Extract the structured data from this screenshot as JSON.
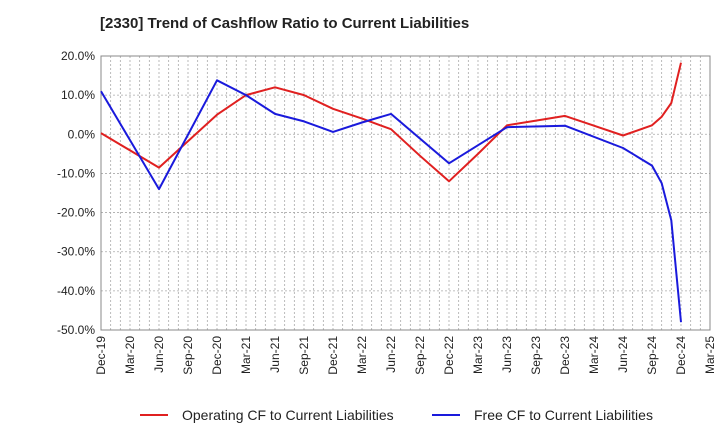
{
  "chart_data": {
    "type": "line",
    "title": "[2330]  Trend of Cashflow Ratio to Current Liabilities",
    "xlabel": "",
    "ylabel": "",
    "x_tick_labels": [
      "Dec-19",
      "Mar-20",
      "Jun-20",
      "Sep-20",
      "Dec-20",
      "Mar-21",
      "Jun-21",
      "Sep-21",
      "Dec-21",
      "Mar-22",
      "Jun-22",
      "Sep-22",
      "Dec-22",
      "Mar-23",
      "Jun-23",
      "Sep-23",
      "Dec-23",
      "Mar-24",
      "Jun-24",
      "Sep-24",
      "Dec-24",
      "Mar-25"
    ],
    "y_tick_labels": [
      "20.0%",
      "10.0%",
      "0.0%",
      "-10.0%",
      "-20.0%",
      "-30.0%",
      "-40.0%",
      "-50.0%"
    ],
    "ylim": [
      -50,
      20
    ],
    "y_unit": "%",
    "grid": true,
    "legend_position": "bottom",
    "series": [
      {
        "name": "Operating CF to Current Liabilities",
        "color": "#e02020",
        "points": [
          [
            "Dec-19",
            0.3
          ],
          [
            "Jun-20",
            -8.5
          ],
          [
            "Dec-20",
            5.0
          ],
          [
            "Mar-21",
            10.0
          ],
          [
            "Jun-21",
            12.0
          ],
          [
            "Sep-21",
            10.0
          ],
          [
            "Dec-21",
            6.5
          ],
          [
            "Mar-22",
            4.0
          ],
          [
            "Jun-22",
            1.3
          ],
          [
            "Sep-22",
            -5.5
          ],
          [
            "Dec-22",
            -12.0
          ],
          [
            "Mar-23",
            -5.0
          ],
          [
            "Jun-23",
            2.3
          ],
          [
            "Sep-23",
            3.5
          ],
          [
            "Dec-23",
            4.7
          ],
          [
            "Mar-24",
            2.2
          ],
          [
            "Jun-24",
            -0.3
          ],
          [
            "Sep-24",
            2.3
          ],
          [
            "Oct-24",
            4.5
          ],
          [
            "Nov-24",
            8.0
          ],
          [
            "Dec-24",
            18.3
          ]
        ]
      },
      {
        "name": "Free CF to Current Liabilities",
        "color": "#1a1adc",
        "points": [
          [
            "Dec-19",
            11.0
          ],
          [
            "Jun-20",
            -14.0
          ],
          [
            "Dec-20",
            13.8
          ],
          [
            "Mar-21",
            10.0
          ],
          [
            "Jun-21",
            5.2
          ],
          [
            "Sep-21",
            3.3
          ],
          [
            "Dec-21",
            0.6
          ],
          [
            "Mar-22",
            3.0
          ],
          [
            "Jun-22",
            5.2
          ],
          [
            "Dec-22",
            -7.4
          ],
          [
            "Jun-23",
            1.8
          ],
          [
            "Dec-23",
            2.2
          ],
          [
            "Jun-24",
            -3.5
          ],
          [
            "Sep-24",
            -8.0
          ],
          [
            "Oct-24",
            -12.5
          ],
          [
            "Nov-24",
            -22.0
          ],
          [
            "Dec-24",
            -48.0
          ]
        ]
      }
    ]
  }
}
